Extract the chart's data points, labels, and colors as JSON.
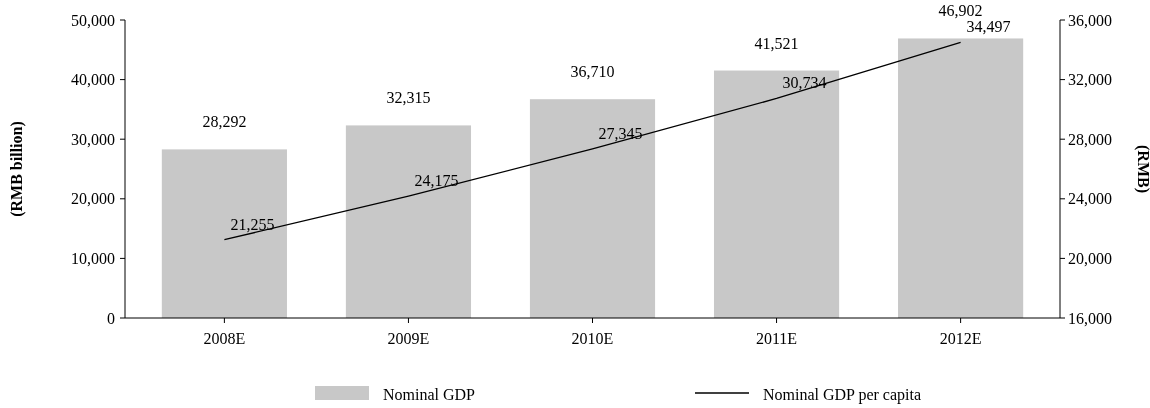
{
  "chart_data": {
    "type": "bar",
    "categories": [
      "2008E",
      "2009E",
      "2010E",
      "2011E",
      "2012E"
    ],
    "series": [
      {
        "name": "Nominal GDP",
        "color": "#c8c8c8",
        "values": [
          28292,
          32315,
          36710,
          41521,
          46902
        ],
        "value_labels": [
          "28,292",
          "32,315",
          "36,710",
          "41,521",
          "46,902"
        ]
      },
      {
        "name": "Nominal GDP per capita",
        "type": "line",
        "axis": "y2",
        "color": "#000000",
        "values": [
          21255,
          24175,
          27345,
          30734,
          34497
        ],
        "value_labels": [
          "21,255",
          "24,175",
          "27,345",
          "30,734",
          "34,497"
        ]
      }
    ],
    "ylabel": "(RMB billion)",
    "y2label": "(RMB)",
    "ylim": [
      0,
      50000
    ],
    "yticks": [
      0,
      {
        "value": 10000,
        "label": "10,000"
      },
      {
        "value": 20000,
        "label": "20,000"
      },
      {
        "value": 30000,
        "label": "30,000"
      },
      {
        "value": 40000,
        "label": "40,000"
      },
      {
        "value": 50000,
        "label": "50,000"
      }
    ],
    "y2lim": [
      16000,
      36000
    ],
    "y2ticks": [
      {
        "value": 16000,
        "label": "16,000"
      },
      {
        "value": 20000,
        "label": "20,000"
      },
      {
        "value": 24000,
        "label": "24,000"
      },
      {
        "value": 28000,
        "label": "28,000"
      },
      {
        "value": 32000,
        "label": "32,000"
      },
      {
        "value": 36000,
        "label": "36,000"
      }
    ],
    "legend": "bottom",
    "grid": false
  }
}
